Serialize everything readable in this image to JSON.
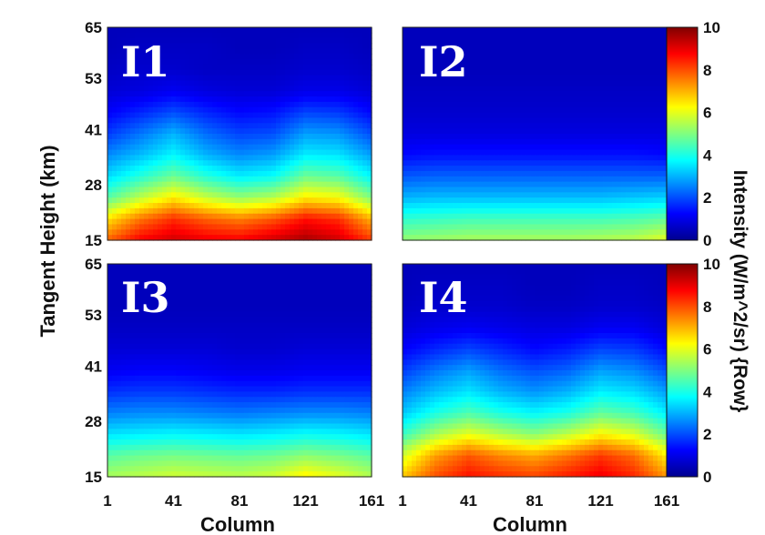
{
  "chart_data": {
    "type": "heatmap",
    "ylabel": "Tangent Height (km)",
    "xlabel": "Column",
    "colorbar_label": "Intensity (W/m^2/sr) {Row}",
    "colorscale": "jet",
    "x_ticks": [
      "1",
      "41",
      "81",
      "121",
      "161"
    ],
    "y_ticks": [
      "15",
      "28",
      "41",
      "53",
      "65"
    ],
    "xlim": [
      1,
      161
    ],
    "ylim": [
      15,
      65
    ],
    "colorbar_ticks": [
      "0",
      "2",
      "4",
      "6",
      "8",
      "10"
    ],
    "clim": [
      0,
      10
    ],
    "panels": [
      {
        "label": "I1",
        "columns": [
          1,
          21,
          41,
          61,
          81,
          101,
          121,
          141,
          161
        ],
        "heights": [
          15,
          20,
          25,
          30,
          35,
          40,
          45,
          50,
          55,
          60,
          65
        ],
        "values": [
          [
            7.8,
            8.8,
            9.2,
            8.9,
            8.8,
            9.2,
            9.6,
            9.2,
            8.2
          ],
          [
            6.5,
            7.6,
            8.3,
            7.8,
            7.5,
            7.9,
            8.6,
            8.3,
            7.0
          ],
          [
            4.6,
            5.6,
            6.4,
            5.7,
            5.2,
            5.5,
            6.4,
            6.2,
            5.0
          ],
          [
            3.4,
            4.1,
            4.8,
            4.1,
            3.6,
            3.8,
            4.8,
            4.6,
            3.7
          ],
          [
            2.6,
            3.1,
            3.7,
            3.0,
            2.6,
            2.8,
            3.6,
            3.5,
            2.8
          ],
          [
            1.8,
            2.4,
            3.0,
            2.3,
            1.9,
            2.0,
            2.8,
            2.7,
            2.0
          ],
          [
            1.2,
            1.6,
            2.0,
            1.6,
            1.3,
            1.4,
            1.9,
            1.8,
            1.3
          ],
          [
            0.8,
            0.9,
            1.1,
            0.9,
            0.8,
            0.8,
            1.0,
            1.0,
            0.8
          ],
          [
            0.6,
            0.7,
            0.7,
            0.6,
            0.6,
            0.6,
            0.7,
            0.7,
            0.6
          ],
          [
            0.5,
            0.6,
            0.6,
            0.6,
            0.5,
            0.5,
            0.6,
            0.6,
            0.5
          ],
          [
            0.5,
            0.5,
            0.5,
            0.5,
            0.5,
            0.5,
            0.5,
            0.5,
            0.5
          ]
        ]
      },
      {
        "label": "I2",
        "columns": [
          1,
          21,
          41,
          61,
          81,
          101,
          121,
          141,
          161
        ],
        "heights": [
          15,
          20,
          25,
          30,
          35,
          40,
          45,
          50,
          55,
          60,
          65
        ],
        "values": [
          [
            5.2,
            5.3,
            5.4,
            5.4,
            5.4,
            5.4,
            5.5,
            5.6,
            6.0
          ],
          [
            4.2,
            4.3,
            4.4,
            4.4,
            4.4,
            4.4,
            4.4,
            4.5,
            4.7
          ],
          [
            3.0,
            3.1,
            3.1,
            3.1,
            3.1,
            3.1,
            3.1,
            3.2,
            3.3
          ],
          [
            2.1,
            2.2,
            2.2,
            2.2,
            2.2,
            2.2,
            2.2,
            2.2,
            2.2
          ],
          [
            1.3,
            1.4,
            1.4,
            1.4,
            1.4,
            1.4,
            1.4,
            1.4,
            1.3
          ],
          [
            0.9,
            0.9,
            0.9,
            0.9,
            0.9,
            0.9,
            0.9,
            0.9,
            0.9
          ],
          [
            0.7,
            0.7,
            0.7,
            0.7,
            0.7,
            0.7,
            0.7,
            0.7,
            0.7
          ],
          [
            0.6,
            0.6,
            0.6,
            0.6,
            0.6,
            0.6,
            0.6,
            0.6,
            0.6
          ],
          [
            0.5,
            0.5,
            0.5,
            0.5,
            0.5,
            0.5,
            0.5,
            0.5,
            0.5
          ],
          [
            0.5,
            0.5,
            0.5,
            0.5,
            0.5,
            0.5,
            0.5,
            0.5,
            0.5
          ],
          [
            0.5,
            0.5,
            0.5,
            0.5,
            0.5,
            0.5,
            0.5,
            0.5,
            0.5
          ]
        ]
      },
      {
        "label": "I3",
        "columns": [
          1,
          21,
          41,
          61,
          81,
          101,
          121,
          141,
          161
        ],
        "heights": [
          15,
          20,
          25,
          30,
          35,
          40,
          45,
          50,
          55,
          60,
          65
        ],
        "values": [
          [
            5.4,
            5.6,
            5.8,
            5.7,
            5.6,
            5.8,
            6.4,
            6.0,
            5.5
          ],
          [
            4.6,
            4.8,
            4.9,
            4.8,
            4.7,
            4.8,
            5.1,
            4.9,
            4.6
          ],
          [
            3.5,
            3.6,
            3.7,
            3.6,
            3.5,
            3.6,
            3.8,
            3.7,
            3.5
          ],
          [
            2.5,
            2.6,
            2.6,
            2.5,
            2.4,
            2.5,
            2.6,
            2.6,
            2.5
          ],
          [
            1.7,
            1.8,
            1.8,
            1.7,
            1.6,
            1.6,
            1.7,
            1.7,
            1.7
          ],
          [
            1.1,
            1.2,
            1.2,
            1.1,
            1.0,
            1.0,
            1.1,
            1.1,
            1.1
          ],
          [
            0.8,
            0.8,
            0.8,
            0.8,
            0.7,
            0.7,
            0.8,
            0.8,
            0.8
          ],
          [
            0.6,
            0.6,
            0.6,
            0.6,
            0.6,
            0.6,
            0.6,
            0.6,
            0.6
          ],
          [
            0.5,
            0.5,
            0.5,
            0.5,
            0.5,
            0.5,
            0.5,
            0.5,
            0.5
          ],
          [
            0.5,
            0.5,
            0.5,
            0.5,
            0.5,
            0.5,
            0.5,
            0.5,
            0.5
          ],
          [
            0.5,
            0.5,
            0.5,
            0.5,
            0.5,
            0.5,
            0.5,
            0.5,
            0.5
          ]
        ]
      },
      {
        "label": "I4",
        "columns": [
          1,
          21,
          41,
          61,
          81,
          101,
          121,
          141,
          161
        ],
        "heights": [
          15,
          20,
          25,
          30,
          35,
          40,
          45,
          50,
          55,
          60,
          65
        ],
        "values": [
          [
            6.8,
            8.0,
            8.6,
            8.3,
            8.1,
            8.5,
            8.9,
            8.4,
            7.3
          ],
          [
            5.8,
            7.2,
            7.9,
            7.4,
            7.1,
            7.6,
            8.2,
            7.7,
            6.4
          ],
          [
            4.3,
            5.4,
            6.0,
            5.5,
            5.1,
            5.6,
            6.3,
            5.9,
            4.8
          ],
          [
            3.2,
            4.0,
            4.5,
            4.0,
            3.7,
            4.0,
            4.7,
            4.4,
            3.6
          ],
          [
            2.5,
            3.1,
            3.5,
            3.0,
            2.7,
            3.0,
            3.6,
            3.4,
            2.8
          ],
          [
            1.8,
            2.4,
            2.8,
            2.3,
            2.0,
            2.2,
            2.8,
            2.6,
            2.0
          ],
          [
            1.2,
            1.6,
            1.9,
            1.6,
            1.3,
            1.5,
            1.9,
            1.8,
            1.3
          ],
          [
            0.8,
            1.0,
            1.1,
            1.0,
            0.9,
            0.9,
            1.1,
            1.1,
            0.8
          ],
          [
            0.6,
            0.7,
            0.7,
            0.7,
            0.6,
            0.6,
            0.7,
            0.7,
            0.6
          ],
          [
            0.5,
            0.6,
            0.6,
            0.6,
            0.5,
            0.5,
            0.6,
            0.6,
            0.5
          ],
          [
            0.5,
            0.5,
            0.5,
            0.5,
            0.5,
            0.5,
            0.5,
            0.5,
            0.5
          ]
        ]
      }
    ]
  }
}
